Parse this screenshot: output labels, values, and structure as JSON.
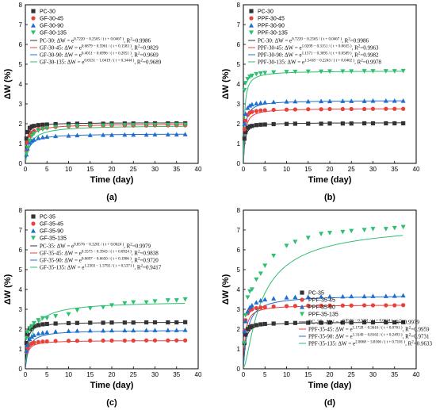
{
  "chart_data": [
    {
      "type": "scatter",
      "panel": "(a)",
      "xlabel": "Time (day)",
      "ylabel": "ΔW (%)",
      "xlim": [
        0,
        40
      ],
      "ylim": [
        0,
        8
      ],
      "xticks": [
        0,
        5,
        10,
        15,
        20,
        25,
        30,
        35,
        40
      ],
      "yticks": [
        0,
        1,
        2,
        3,
        4,
        5,
        6,
        7,
        8
      ],
      "x": [
        0.25,
        0.5,
        1,
        1.5,
        2,
        3,
        4,
        5,
        7,
        10,
        12,
        15,
        18,
        20,
        23,
        25,
        28,
        30,
        33,
        35,
        37
      ],
      "legend_position": "top-left",
      "series": [
        {
          "name": "PC-30",
          "marker": "square",
          "color": "#333333",
          "fit": [
            0.722,
            -0.2565,
            0.0467
          ],
          "fit_label": "PC-30: ΔW = e",
          "fit_exp": "0.7220 − 0.2565 / ( t + 0.0467 )",
          "r2_label": ", R",
          "r2_value": "=0.9986",
          "values": [
            1.25,
            1.58,
            1.79,
            1.86,
            1.89,
            1.93,
            1.95,
            1.96,
            1.98,
            1.99,
            2.0,
            2.0,
            2.0,
            2.01,
            2.01,
            2.01,
            2.02,
            2.02,
            2.02,
            2.02,
            2.02
          ]
        },
        {
          "name": "GF-30-45",
          "marker": "circle",
          "color": "#e8413c",
          "fit": [
            0.6879,
            -0.5961,
            0.1583
          ],
          "fit_label": "GF-30-45: ΔW = e",
          "fit_exp": "0.6879 − 0.5961 / ( t + 0.1583 )",
          "r2_label": ", R",
          "r2_value": "=0.9829",
          "values": [
            0.65,
            1.05,
            1.4,
            1.55,
            1.63,
            1.72,
            1.77,
            1.8,
            1.84,
            1.87,
            1.88,
            1.89,
            1.9,
            1.9,
            1.91,
            1.91,
            1.91,
            1.92,
            1.92,
            1.92,
            1.92
          ]
        },
        {
          "name": "GF-30-90",
          "marker": "triangle-up",
          "color": "#1f6fd1",
          "fit": [
            0.4051,
            -0.6996,
            0.2051
          ],
          "fit_label": "GF-30-90: ΔW = e",
          "fit_exp": "0.4051 − 0.6996 / ( t + 0.2051 )",
          "r2_label": ", R",
          "r2_value": "=0.9669",
          "values": [
            0.45,
            0.75,
            1.05,
            1.15,
            1.2,
            1.28,
            1.32,
            1.35,
            1.38,
            1.4,
            1.42,
            1.43,
            1.44,
            1.44,
            1.45,
            1.45,
            1.45,
            1.46,
            1.46,
            1.46,
            1.47
          ]
        },
        {
          "name": "GF-30-135",
          "marker": "triangle-down",
          "color": "#2fbf71",
          "fit": [
            0.6531,
            -1.0419,
            0.3444
          ],
          "fit_label": "GF-30-135: ΔW = e",
          "fit_exp": "0.6531 − 1.0419 / ( t + 0.3444 )",
          "r2_label": ", R",
          "r2_value": "=0.9689",
          "values": [
            0.5,
            0.8,
            1.15,
            1.38,
            1.5,
            1.65,
            1.72,
            1.78,
            1.83,
            1.87,
            1.89,
            1.9,
            1.91,
            1.92,
            1.93,
            1.93,
            1.94,
            1.94,
            1.94,
            1.95,
            1.95
          ]
        }
      ]
    },
    {
      "type": "scatter",
      "panel": "(b)",
      "xlabel": "Time (day)",
      "ylabel": "ΔW (%)",
      "xlim": [
        0,
        40
      ],
      "ylim": [
        0,
        8
      ],
      "xticks": [
        0,
        5,
        10,
        15,
        20,
        25,
        30,
        35,
        40
      ],
      "yticks": [
        0,
        1,
        2,
        3,
        4,
        5,
        6,
        7,
        8
      ],
      "x": [
        0.25,
        0.5,
        1,
        1.5,
        2,
        3,
        4,
        5,
        7,
        10,
        12,
        15,
        18,
        20,
        23,
        25,
        28,
        30,
        33,
        35,
        37
      ],
      "legend_position": "top-left",
      "series": [
        {
          "name": "PC-30",
          "marker": "square",
          "color": "#333333",
          "fit": [
            0.722,
            -0.2565,
            0.0467
          ],
          "fit_label": "PC-30: ΔW = e",
          "fit_exp": "0.7220 − 0.2565 / ( t + 0.0467 )",
          "r2_label": ", R",
          "r2_value": "=0.9986",
          "values": [
            1.25,
            1.58,
            1.79,
            1.86,
            1.89,
            1.93,
            1.95,
            1.96,
            1.98,
            1.99,
            2.0,
            2.0,
            2.0,
            2.01,
            2.01,
            2.01,
            2.02,
            2.02,
            2.02,
            2.02,
            2.02
          ]
        },
        {
          "name": "PPF-30-45",
          "marker": "circle",
          "color": "#e8413c",
          "fit": [
            1.0209,
            -0.3151,
            0.0635
          ],
          "fit_label": "PPF-30-45: ΔW = e",
          "fit_exp": "1.0209 − 0.3151 / ( t + 0.0635 )",
          "r2_label": ", R",
          "r2_value": "=0.9963",
          "values": [
            1.72,
            2.15,
            2.45,
            2.56,
            2.6,
            2.64,
            2.67,
            2.68,
            2.7,
            2.71,
            2.72,
            2.73,
            2.73,
            2.74,
            2.74,
            2.74,
            2.74,
            2.75,
            2.75,
            2.75,
            2.75
          ]
        },
        {
          "name": "PPF-30-90",
          "marker": "triangle-up",
          "color": "#1f6fd1",
          "fit": [
            1.1571,
            -0.3095,
            0.0589
          ],
          "fit_label": "PPF-30-90: ΔW = e",
          "fit_exp": "1.1571 − 0.3095 / ( t + 0.0589 )",
          "r2_label": ", R",
          "r2_value": "=0.9982",
          "values": [
            2.0,
            2.5,
            2.8,
            2.92,
            2.98,
            3.03,
            3.06,
            3.08,
            3.1,
            3.12,
            3.13,
            3.13,
            3.14,
            3.14,
            3.15,
            3.15,
            3.15,
            3.16,
            3.16,
            3.16,
            3.16
          ]
        },
        {
          "name": "PPF-30-135",
          "marker": "triangle-down",
          "color": "#2fbf71",
          "fit": [
            1.5418,
            -0.2243,
            0.0402
          ],
          "fit_label": "PPF-30-135: ΔW = e",
          "fit_exp": "1.5418 − 0.2243 / ( t + 0.0402 )",
          "r2_label": ", R",
          "r2_value": "=0.9978",
          "values": [
            3.7,
            4.05,
            4.25,
            4.37,
            4.42,
            4.5,
            4.54,
            4.56,
            4.59,
            4.61,
            4.62,
            4.63,
            4.63,
            4.64,
            4.64,
            4.64,
            4.65,
            4.65,
            4.65,
            4.65,
            4.66
          ]
        }
      ]
    },
    {
      "type": "scatter",
      "panel": "(c)",
      "xlabel": "Time (day)",
      "ylabel": "ΔW (%)",
      "xlim": [
        0,
        40
      ],
      "ylim": [
        0,
        8
      ],
      "xticks": [
        0,
        5,
        10,
        15,
        20,
        25,
        30,
        35,
        40
      ],
      "yticks": [
        0,
        1,
        2,
        3,
        4,
        5,
        6,
        7,
        8
      ],
      "x": [
        0.25,
        0.5,
        1,
        1.5,
        2,
        3,
        4,
        5,
        7,
        10,
        12,
        15,
        18,
        20,
        23,
        25,
        28,
        30,
        33,
        35,
        37
      ],
      "legend_position": "top-left",
      "series": [
        {
          "name": "PC-35",
          "marker": "square",
          "color": "#333333",
          "fit": [
            0.8576,
            -0.3201,
            0.0624
          ],
          "fit_label": "PC-35: ΔW = e",
          "fit_exp": "0.8576 − 0.3201 / ( t + 0.0624 )",
          "r2_label": ", R",
          "r2_value": "=0.9979",
          "values": [
            1.3,
            1.72,
            2.0,
            2.1,
            2.15,
            2.2,
            2.24,
            2.26,
            2.28,
            2.3,
            2.31,
            2.32,
            2.32,
            2.33,
            2.33,
            2.33,
            2.34,
            2.34,
            2.34,
            2.34,
            2.35
          ]
        },
        {
          "name": "GF-35-45",
          "marker": "circle",
          "color": "#e8413c",
          "fit": [
            0.3573,
            -0.3943,
            0.0924
          ],
          "fit_label": "GF-35-45: ΔW = e",
          "fit_exp": "0.3573 − 0.3943 / ( t + 0.0924 )",
          "r2_label": ", R",
          "r2_value": "=0.9838",
          "values": [
            0.85,
            1.05,
            1.2,
            1.28,
            1.32,
            1.35,
            1.37,
            1.38,
            1.4,
            1.41,
            1.41,
            1.42,
            1.42,
            1.42,
            1.42,
            1.42,
            1.43,
            1.43,
            1.43,
            1.43,
            1.43
          ]
        },
        {
          "name": "GF-35-90",
          "marker": "triangle-up",
          "color": "#1f6fd1",
          "fit": [
            0.6697,
            -0.665,
            0.1906
          ],
          "fit_label": "GF-35-90: ΔW = e",
          "fit_exp": "0.6697 − 0.6650 / ( t + 0.1906 )",
          "r2_label": ", R",
          "r2_value": "=0.9720",
          "values": [
            0.9,
            1.2,
            1.5,
            1.62,
            1.7,
            1.78,
            1.82,
            1.85,
            1.88,
            1.91,
            1.92,
            1.93,
            1.93,
            1.94,
            1.94,
            1.94,
            1.95,
            1.95,
            1.95,
            1.95,
            1.96
          ]
        },
        {
          "name": "GF-35-135",
          "marker": "triangle-down",
          "color": "#2fbf71",
          "fit": [
            1.2303,
            -1.3792,
            0.5371
          ],
          "fit_label": "GF-35-135: ΔW = e",
          "fit_exp": "1.2303 − 1.3792 / ( t + 0.5371 )",
          "r2_label": ", R",
          "r2_value": "=0.9417",
          "values": [
            1.55,
            1.85,
            2.05,
            2.15,
            2.3,
            2.45,
            2.55,
            2.55,
            2.65,
            2.75,
            2.95,
            3.05,
            3.1,
            3.2,
            3.3,
            3.35,
            3.35,
            3.4,
            3.45,
            3.45,
            3.5
          ]
        }
      ]
    },
    {
      "type": "scatter",
      "panel": "(d)",
      "xlabel": "Time (day)",
      "ylabel": "ΔW (%)",
      "xlim": [
        0,
        40
      ],
      "ylim": [
        0,
        8
      ],
      "xticks": [
        0,
        5,
        10,
        15,
        20,
        25,
        30,
        35,
        40
      ],
      "yticks": [
        0,
        1,
        2,
        3,
        4,
        5,
        6,
        7,
        8
      ],
      "x": [
        0.25,
        0.5,
        1,
        1.5,
        2,
        3,
        4,
        5,
        7,
        10,
        12,
        15,
        18,
        20,
        23,
        25,
        28,
        30,
        33,
        35,
        37
      ],
      "legend_position": "bottom-right",
      "series": [
        {
          "name": "PC-35",
          "marker": "square",
          "color": "#333333",
          "fit": [
            0.8576,
            -0.3201,
            0.0624
          ],
          "fit_label": "PC-35: ΔW = e",
          "fit_exp": "0.8576 − 0.3201 / ( t + 0.0624 )",
          "r2_label": ", R",
          "r2_value": "=0.9979",
          "values": [
            1.3,
            1.72,
            2.0,
            2.1,
            2.15,
            2.2,
            2.24,
            2.26,
            2.28,
            2.3,
            2.31,
            2.32,
            2.32,
            2.33,
            2.33,
            2.33,
            2.34,
            2.34,
            2.34,
            2.34,
            2.35
          ]
        },
        {
          "name": "PPF-35-45",
          "marker": "circle",
          "color": "#e8413c",
          "fit": [
            1.1728,
            -0.3616,
            0.0761
          ],
          "fit_label": "PPF-35-45: ΔW = e",
          "fit_exp": "1.1728 − 0.3616 / ( t + 0.0761 )",
          "r2_label": ", R",
          "r2_value": "=0.9959",
          "values": [
            1.9,
            2.45,
            2.8,
            2.95,
            3.0,
            3.06,
            3.09,
            3.11,
            3.14,
            3.16,
            3.17,
            3.18,
            3.18,
            3.19,
            3.19,
            3.19,
            3.2,
            3.2,
            3.2,
            3.2,
            3.21
          ]
        },
        {
          "name": "PPF-35-90",
          "marker": "triangle-up",
          "color": "#1f6fd1",
          "fit": [
            1.314,
            -0.8162,
            0.2493
          ],
          "fit_label": "PPF-35-90: ΔW = e",
          "fit_exp": "1.3140 − 0.8162 / ( t + 0.2493 )",
          "r2_label": ", R",
          "r2_value": "=0.9731",
          "values": [
            1.9,
            2.4,
            2.9,
            3.1,
            3.2,
            3.35,
            3.45,
            3.5,
            3.55,
            3.6,
            3.62,
            3.63,
            3.64,
            3.65,
            3.65,
            3.66,
            3.66,
            3.67,
            3.67,
            3.68,
            3.7
          ]
        },
        {
          "name": "PPF-35-135",
          "marker": "triangle-down",
          "color": "#2fbf71",
          "fit": [
            2.0068,
            -3.8106,
            0.7101
          ],
          "fit_label": "PPF-35-135: ΔW = e",
          "fit_exp": "2.0068 − 3.8106 / ( t + 0.7101 )",
          "r2_label": ", R",
          "r2_value": "=0.9633",
          "values": [
            1.3,
            2.7,
            3.6,
            3.9,
            4.0,
            4.5,
            4.8,
            5.2,
            5.7,
            6.2,
            6.4,
            6.6,
            6.8,
            6.85,
            6.9,
            6.95,
            7.0,
            7.05,
            7.05,
            7.1,
            7.15
          ]
        }
      ]
    }
  ]
}
